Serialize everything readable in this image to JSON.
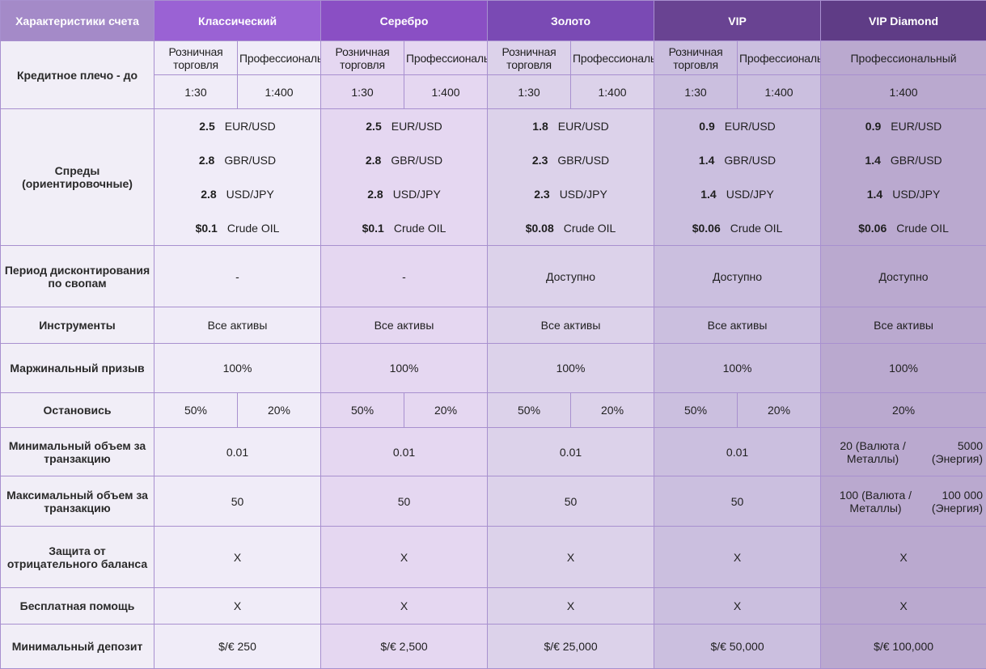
{
  "header": {
    "label": "Характеристики счета",
    "accounts": [
      "Классический",
      "Серебро",
      "Золото",
      "VIP",
      "VIP Diamond"
    ]
  },
  "leverage": {
    "label": "Кредитное плечо - до",
    "retail": "Розничная торговля",
    "professional": "Профессиональный",
    "values": {
      "classic": [
        "1:30",
        "1:400"
      ],
      "silver": [
        "1:30",
        "1:400"
      ],
      "gold": [
        "1:30",
        "1:400"
      ],
      "vip": [
        "1:30",
        "1:400"
      ],
      "diamond": "1:400"
    }
  },
  "spreads": {
    "label": "Спреды (ориентировочные)",
    "pairs": [
      "EUR/USD",
      "GBR/USD",
      "USD/JPY",
      "Crude OIL"
    ],
    "classic": [
      "2.5",
      "2.8",
      "2.8",
      "$0.1"
    ],
    "silver": [
      "2.5",
      "2.8",
      "2.8",
      "$0.1"
    ],
    "gold": [
      "1.8",
      "2.3",
      "2.3",
      "$0.08"
    ],
    "vip": [
      "0.9",
      "1.4",
      "1.4",
      "$0.06"
    ],
    "diamond": [
      "0.9",
      "1.4",
      "1.4",
      "$0.06"
    ]
  },
  "swap": {
    "label": "Период дисконтирования по свопам",
    "values": [
      "-",
      "-",
      "Доступно",
      "Доступно",
      "Доступно"
    ]
  },
  "instruments": {
    "label": "Инструменты",
    "values": [
      "Все активы",
      "Все активы",
      "Все активы",
      "Все активы",
      "Все активы"
    ]
  },
  "margin_call": {
    "label": "Маржинальный призыв",
    "values": [
      "100%",
      "100%",
      "100%",
      "100%",
      "100%"
    ]
  },
  "stop_out": {
    "label": "Остановись",
    "values": [
      "50%",
      "20%",
      "50%",
      "20%",
      "50%",
      "20%",
      "50%",
      "20%",
      "20%"
    ]
  },
  "min_volume": {
    "label": "Минимальный объем за транзакцию",
    "values": [
      "0.01",
      "0.01",
      "0.01",
      "0.01"
    ],
    "diamond_metals": "20 (Валюта / Металлы)",
    "diamond_energy": "5000 (Энергия)"
  },
  "max_volume": {
    "label": "Максимальный объем за транзакцию",
    "values": [
      "50",
      "50",
      "50",
      "50"
    ],
    "diamond_metals": "100 (Валюта / Металлы)",
    "diamond_energy": "100 000 (Энергия)"
  },
  "negative_balance": {
    "label": "Защита от отрицательного баланса",
    "values": [
      "X",
      "X",
      "X",
      "X",
      "X"
    ]
  },
  "free_help": {
    "label": "Бесплатная помощь",
    "values": [
      "X",
      "X",
      "X",
      "X",
      "X"
    ]
  },
  "min_deposit": {
    "label": "Минимальный депозит",
    "values": [
      "$/€ 250",
      "$/€ 2,500",
      "$/€ 25,000",
      "$/€ 50,000",
      "$/€ 100,000"
    ]
  },
  "colors": {
    "header_gradient": [
      "#a48ac8",
      "#9a62d4",
      "#8a4fc4",
      "#7a4ab4",
      "#694392",
      "#5f3c86"
    ],
    "cell_tints": [
      "#f1eef7",
      "#f0ecf8",
      "#e5d7f1",
      "#dcd2ea",
      "#cbbfdf",
      "#baa9cf"
    ]
  }
}
